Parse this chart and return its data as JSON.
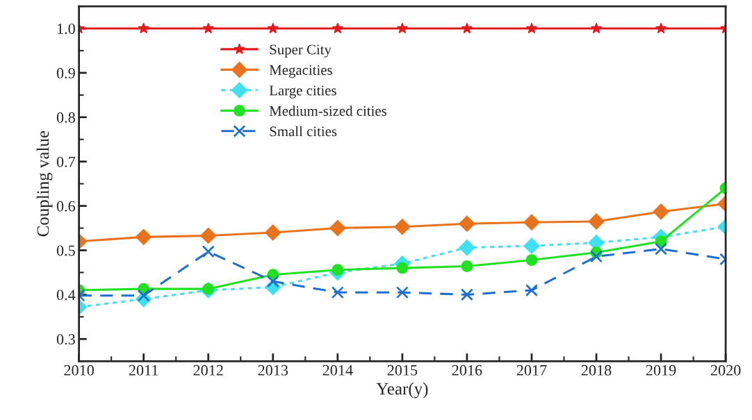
{
  "chart_data": {
    "type": "line",
    "xlabel": "Year(y)",
    "ylabel": "Coupling value",
    "categories": [
      "2010",
      "2011",
      "2012",
      "2013",
      "2014",
      "2015",
      "2016",
      "2017",
      "2018",
      "2019",
      "2020"
    ],
    "series": [
      {
        "name": "Super City",
        "color": "#e31a1c",
        "marker": "star",
        "line_style": "solid",
        "values": [
          1.0,
          1.0,
          1.0,
          1.0,
          1.0,
          1.0,
          1.0,
          1.0,
          1.0,
          1.0,
          1.0
        ]
      },
      {
        "name": "Megacities",
        "color": "#e8731e",
        "marker": "diamond",
        "line_style": "solid",
        "values": [
          0.52,
          0.53,
          0.533,
          0.54,
          0.55,
          0.553,
          0.56,
          0.563,
          0.565,
          0.587,
          0.605
        ]
      },
      {
        "name": "Large cities",
        "color": "#40e0f0",
        "marker": "diamond",
        "line_style": "dotted",
        "values": [
          0.372,
          0.39,
          0.41,
          0.417,
          0.45,
          0.47,
          0.506,
          0.51,
          0.517,
          0.53,
          0.553
        ]
      },
      {
        "name": "Medium-sized cities",
        "color": "#22e022",
        "marker": "circle",
        "line_style": "solid",
        "values": [
          0.41,
          0.413,
          0.413,
          0.445,
          0.456,
          0.46,
          0.464,
          0.478,
          0.495,
          0.52,
          0.64
        ]
      },
      {
        "name": "Small cities",
        "color": "#1f6fd0",
        "marker": "cross",
        "line_style": "dashed",
        "values": [
          0.398,
          0.398,
          0.497,
          0.43,
          0.405,
          0.405,
          0.4,
          0.41,
          0.486,
          0.503,
          0.48
        ]
      }
    ],
    "ylim": [
      0.25,
      1.05
    ],
    "yticks": [
      0.3,
      0.4,
      0.5,
      0.6,
      0.7,
      0.8,
      0.9,
      {
        "value": 1.0,
        "label": "1.0"
      }
    ],
    "grid": false,
    "legend": "top left"
  }
}
